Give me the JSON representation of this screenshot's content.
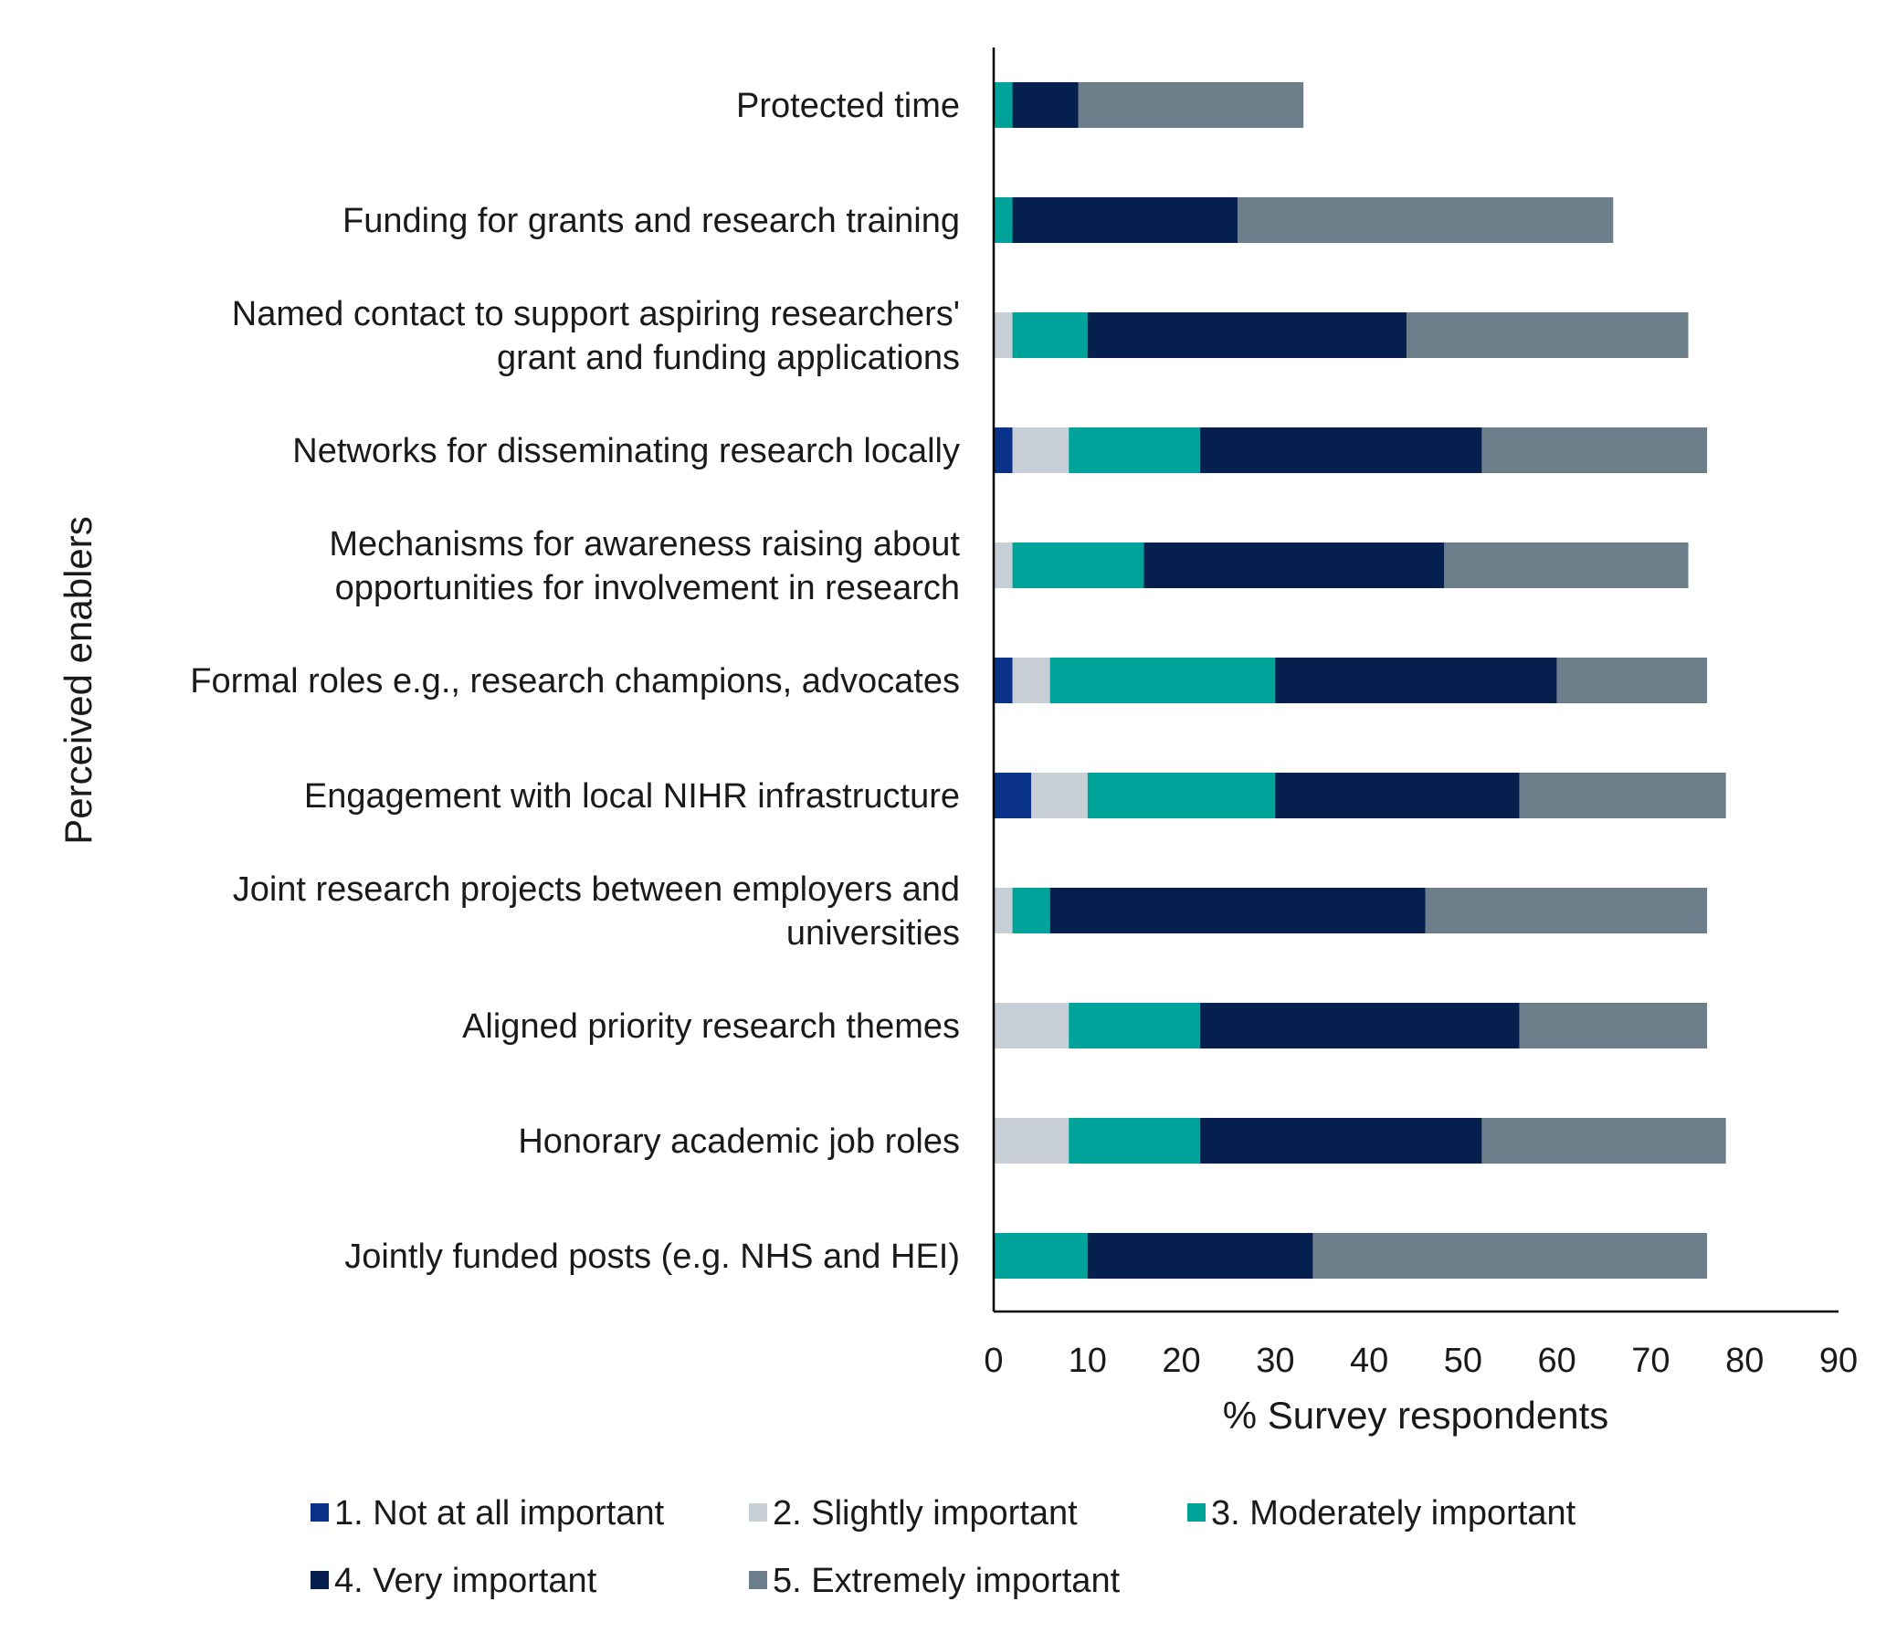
{
  "chart_data": {
    "type": "bar",
    "orientation": "horizontal",
    "stacked": true,
    "categories": [
      [
        "Protected time"
      ],
      [
        "Funding for grants and research training"
      ],
      [
        "Named contact to  support aspiring researchers'",
        "grant and funding applications"
      ],
      [
        "Networks for disseminating research locally"
      ],
      [
        "Mechanisms for awareness raising about",
        "opportunities for involvement in research"
      ],
      [
        "Formal roles e.g., research champions, advocates"
      ],
      [
        "Engagement with local NIHR infrastructure"
      ],
      [
        "Joint research projects between employers and",
        "universities"
      ],
      [
        "Aligned priority research themes"
      ],
      [
        "Honorary academic job roles"
      ],
      [
        "Jointly funded posts (e.g. NHS and HEI)"
      ]
    ],
    "series": [
      {
        "name": "1. Not at all important",
        "color": "#0b3289",
        "values": [
          0,
          0,
          0,
          2,
          0,
          2,
          4,
          0,
          0,
          0,
          0
        ]
      },
      {
        "name": "2. Slightly important",
        "color": "#c7ced6",
        "values": [
          0,
          0,
          2,
          6,
          2,
          4,
          6,
          2,
          8,
          8,
          0
        ]
      },
      {
        "name": "3. Moderately important",
        "color": "#00a39a",
        "values": [
          2,
          2,
          8,
          14,
          14,
          24,
          20,
          4,
          14,
          14,
          10
        ]
      },
      {
        "name": "4. Very important",
        "color": "#051f4f",
        "values": [
          7,
          24,
          34,
          30,
          32,
          30,
          26,
          40,
          34,
          30,
          24
        ]
      },
      {
        "name": "5. Extremely important",
        "color": "#6c7e8a",
        "values": [
          24,
          40,
          30,
          24,
          26,
          16,
          22,
          30,
          20,
          26,
          42
        ]
      }
    ],
    "xlabel": "% Survey respondents",
    "ylabel": "Perceived enablers",
    "xlim": [
      0,
      90
    ],
    "xticks": [
      "0",
      "10",
      "20",
      "30",
      "40",
      "50",
      "60",
      "70",
      "80",
      "90"
    ],
    "grid": false,
    "legend_position": "bottom"
  }
}
